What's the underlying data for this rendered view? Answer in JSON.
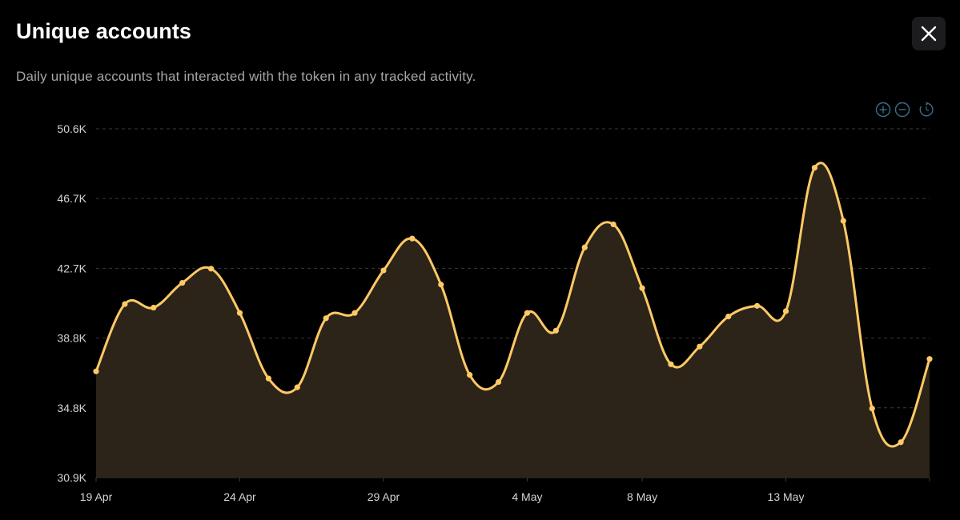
{
  "header": {
    "title": "Unique accounts",
    "subtitle": "Daily unique accounts that interacted with the token in any tracked activity."
  },
  "toolbar": {
    "icons": [
      "zoom-in-icon",
      "zoom-out-icon",
      "reset-zoom-icon"
    ]
  },
  "colors": {
    "background": "#000000",
    "line": "#ffc966",
    "area_fill": "#2c2418",
    "grid": "#3a3a3a",
    "axis_text": "#d4d4d4",
    "toolbar_icon": "#3c6e8a"
  },
  "chart_data": {
    "type": "area",
    "x": [
      "2024-04-19",
      "2024-04-20",
      "2024-04-21",
      "2024-04-22",
      "2024-04-23",
      "2024-04-24",
      "2024-04-25",
      "2024-04-26",
      "2024-04-27",
      "2024-04-28",
      "2024-04-29",
      "2024-04-30",
      "2024-05-01",
      "2024-05-02",
      "2024-05-03",
      "2024-05-04",
      "2024-05-05",
      "2024-05-06",
      "2024-05-07",
      "2024-05-08",
      "2024-05-09",
      "2024-05-10",
      "2024-05-11",
      "2024-05-12",
      "2024-05-13",
      "2024-05-14",
      "2024-05-15",
      "2024-05-16",
      "2024-05-17",
      "2024-05-18"
    ],
    "series": [
      {
        "values": [
          36.9,
          40.7,
          40.5,
          41.9,
          42.7,
          40.2,
          36.5,
          36.0,
          39.9,
          40.2,
          42.6,
          44.4,
          41.8,
          36.7,
          36.3,
          40.2,
          39.2,
          43.9,
          45.2,
          41.6,
          37.3,
          38.3,
          40.0,
          40.6,
          40.3,
          48.4,
          45.4,
          34.8,
          32.9,
          37.6
        ]
      }
    ],
    "x_tick_labels": [
      "19 Apr",
      "24 Apr",
      "29 Apr",
      "4 May",
      "8 May",
      "13 May"
    ],
    "x_tick_dates": [
      "2024-04-19",
      "2024-04-24",
      "2024-04-29",
      "2024-05-04",
      "2024-05-08",
      "2024-05-13"
    ],
    "y_tick_labels": [
      "50.6K",
      "46.7K",
      "42.7K",
      "38.8K",
      "34.8K",
      "30.9K"
    ],
    "ylim": [
      30.9,
      50.6
    ],
    "grid": true,
    "legend": "none"
  }
}
